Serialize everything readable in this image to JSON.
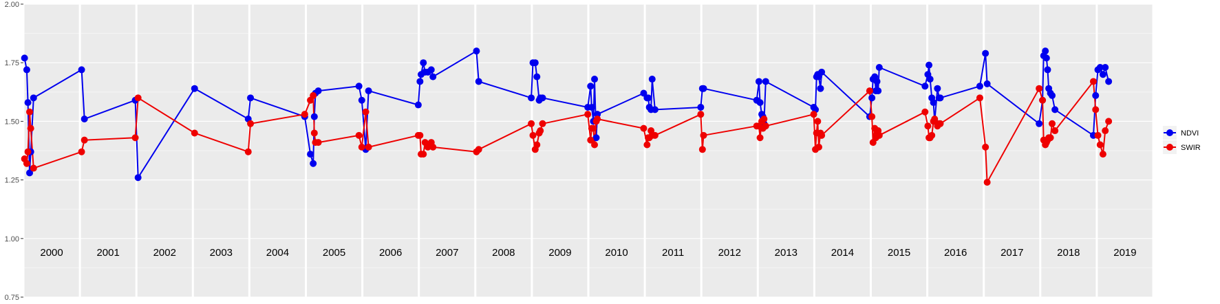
{
  "chart_data": {
    "type": "line",
    "title": "",
    "xlabel": "",
    "ylabel": "",
    "ylim": [
      0.75,
      2.0
    ],
    "xlim": [
      2000.0,
      2020.0
    ],
    "y_ticks": [
      "0.75",
      "1.00",
      "1.25",
      "1.50",
      "1.75",
      "2.00"
    ],
    "y_tick_values": [
      0.75,
      1.0,
      1.25,
      1.5,
      1.75,
      2.0
    ],
    "year_panels": [
      "2000",
      "2001",
      "2002",
      "2003",
      "2004",
      "2005",
      "2006",
      "2007",
      "2008",
      "2009",
      "2010",
      "2011",
      "2012",
      "2013",
      "2014",
      "2015",
      "2016",
      "2017",
      "2018",
      "2019"
    ],
    "grid": true,
    "legend_position": "right",
    "series": [
      {
        "name": "NDVI",
        "color": "#0000ee",
        "x": [
          2000.02,
          2000.06,
          2000.08,
          2000.11,
          2000.13,
          2000.18,
          2001.03,
          2001.08,
          2001.98,
          2002.03,
          2003.03,
          2003.98,
          2004.02,
          2004.98,
          2005.08,
          2005.13,
          2005.15,
          2005.17,
          2005.22,
          2005.94,
          2005.99,
          2006.06,
          2006.11,
          2006.99,
          2007.02,
          2007.04,
          2007.08,
          2007.11,
          2007.16,
          2007.22,
          2007.25,
          2008.02,
          2008.06,
          2008.99,
          2009.02,
          2009.06,
          2009.09,
          2009.13,
          2009.15,
          2009.19,
          2009.99,
          2010.04,
          2010.06,
          2010.09,
          2010.11,
          2010.14,
          2010.16,
          2010.98,
          2011.04,
          2011.06,
          2011.08,
          2011.11,
          2011.13,
          2011.18,
          2011.99,
          2012.02,
          2012.04,
          2012.98,
          2013.02,
          2013.04,
          2013.07,
          2013.09,
          2013.11,
          2013.14,
          2013.99,
          2014.02,
          2014.04,
          2014.06,
          2014.08,
          2014.11,
          2014.13,
          2014.98,
          2015.02,
          2015.04,
          2015.07,
          2015.09,
          2015.11,
          2015.13,
          2015.15,
          2015.96,
          2016.01,
          2016.03,
          2016.05,
          2016.08,
          2016.11,
          2016.13,
          2016.18,
          2016.21,
          2016.23,
          2016.93,
          2017.03,
          2017.06,
          2017.98,
          2018.04,
          2018.06,
          2018.09,
          2018.11,
          2018.13,
          2018.15,
          2018.18,
          2018.21,
          2018.26,
          2018.94,
          2018.98,
          2019.02,
          2019.06,
          2019.11,
          2019.15,
          2019.21
        ],
        "values": [
          1.77,
          1.72,
          1.58,
          1.28,
          1.37,
          1.6,
          1.72,
          1.51,
          1.59,
          1.26,
          1.64,
          1.51,
          1.6,
          1.52,
          1.36,
          1.32,
          1.52,
          1.62,
          1.63,
          1.65,
          1.59,
          1.38,
          1.63,
          1.57,
          1.67,
          1.7,
          1.75,
          1.71,
          1.71,
          1.72,
          1.69,
          1.8,
          1.67,
          1.6,
          1.75,
          1.75,
          1.69,
          1.59,
          1.6,
          1.6,
          1.56,
          1.65,
          1.56,
          1.5,
          1.68,
          1.43,
          1.53,
          1.62,
          1.6,
          1.6,
          1.56,
          1.55,
          1.68,
          1.55,
          1.56,
          1.64,
          1.64,
          1.59,
          1.67,
          1.58,
          1.53,
          1.52,
          1.49,
          1.67,
          1.56,
          1.55,
          1.69,
          1.7,
          1.69,
          1.64,
          1.71,
          1.52,
          1.6,
          1.68,
          1.69,
          1.63,
          1.67,
          1.63,
          1.73,
          1.65,
          1.7,
          1.74,
          1.68,
          1.6,
          1.58,
          1.5,
          1.64,
          1.6,
          1.6,
          1.65,
          1.79,
          1.66,
          1.49,
          1.59,
          1.78,
          1.8,
          1.77,
          1.72,
          1.64,
          1.62,
          1.61,
          1.55,
          1.44,
          1.61,
          1.72,
          1.73,
          1.7,
          1.73,
          1.67
        ]
      },
      {
        "name": "SWIR",
        "color": "#ee0000",
        "x": [
          2000.02,
          2000.06,
          2000.08,
          2000.11,
          2000.13,
          2000.18,
          2001.03,
          2001.08,
          2001.98,
          2002.03,
          2003.03,
          2003.98,
          2004.02,
          2004.98,
          2005.08,
          2005.13,
          2005.15,
          2005.17,
          2005.22,
          2005.94,
          2005.99,
          2006.06,
          2006.11,
          2006.99,
          2007.02,
          2007.04,
          2007.08,
          2007.11,
          2007.16,
          2007.22,
          2007.25,
          2008.02,
          2008.06,
          2008.99,
          2009.02,
          2009.06,
          2009.09,
          2009.13,
          2009.15,
          2009.19,
          2009.99,
          2010.04,
          2010.06,
          2010.09,
          2010.11,
          2010.14,
          2010.16,
          2010.98,
          2011.04,
          2011.06,
          2011.08,
          2011.11,
          2011.13,
          2011.18,
          2011.99,
          2012.02,
          2012.04,
          2012.98,
          2013.02,
          2013.04,
          2013.07,
          2013.09,
          2013.11,
          2013.14,
          2013.99,
          2014.02,
          2014.04,
          2014.06,
          2014.08,
          2014.11,
          2014.13,
          2014.98,
          2015.02,
          2015.04,
          2015.07,
          2015.09,
          2015.11,
          2015.13,
          2015.15,
          2015.96,
          2016.01,
          2016.03,
          2016.05,
          2016.08,
          2016.11,
          2016.13,
          2016.18,
          2016.21,
          2016.23,
          2016.93,
          2017.03,
          2017.06,
          2017.98,
          2018.04,
          2018.06,
          2018.09,
          2018.11,
          2018.13,
          2018.15,
          2018.18,
          2018.21,
          2018.26,
          2018.94,
          2018.98,
          2019.02,
          2019.06,
          2019.11,
          2019.15,
          2019.21
        ],
        "values": [
          1.34,
          1.32,
          1.37,
          1.54,
          1.47,
          1.3,
          1.37,
          1.42,
          1.43,
          1.6,
          1.45,
          1.37,
          1.49,
          1.53,
          1.59,
          1.61,
          1.45,
          1.41,
          1.41,
          1.44,
          1.39,
          1.54,
          1.39,
          1.44,
          1.44,
          1.36,
          1.36,
          1.41,
          1.39,
          1.41,
          1.39,
          1.37,
          1.38,
          1.49,
          1.44,
          1.38,
          1.4,
          1.45,
          1.46,
          1.49,
          1.53,
          1.42,
          1.47,
          1.47,
          1.4,
          1.5,
          1.51,
          1.47,
          1.4,
          1.43,
          1.43,
          1.46,
          1.44,
          1.44,
          1.53,
          1.38,
          1.44,
          1.48,
          1.48,
          1.43,
          1.5,
          1.47,
          1.51,
          1.48,
          1.53,
          1.38,
          1.45,
          1.5,
          1.39,
          1.45,
          1.44,
          1.63,
          1.52,
          1.41,
          1.47,
          1.43,
          1.46,
          1.46,
          1.44,
          1.54,
          1.48,
          1.43,
          1.43,
          1.44,
          1.5,
          1.51,
          1.48,
          1.49,
          1.49,
          1.6,
          1.39,
          1.24,
          1.64,
          1.59,
          1.42,
          1.4,
          1.41,
          1.42,
          1.43,
          1.43,
          1.49,
          1.46,
          1.67,
          1.55,
          1.44,
          1.4,
          1.36,
          1.46,
          1.5
        ]
      }
    ]
  }
}
